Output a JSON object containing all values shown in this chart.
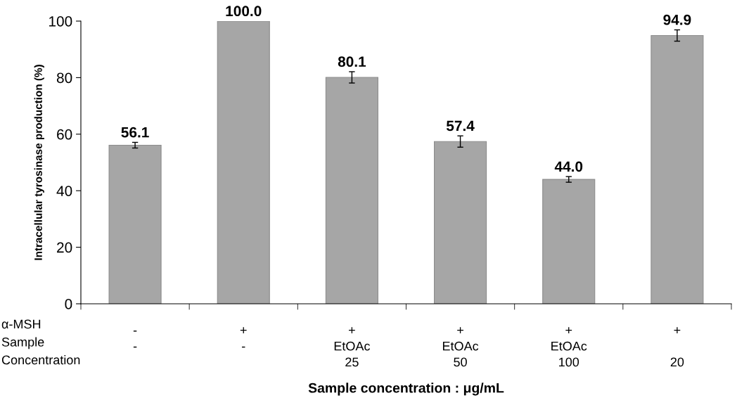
{
  "chart_data": {
    "type": "bar",
    "categories": [
      "-\n-\n",
      "+\n-\n",
      "+\nEtOAc\n25",
      "+\nEtOAc\n50",
      "+\nEtOAc\n100",
      "+\n\n20"
    ],
    "values": [
      56.1,
      100.0,
      80.1,
      57.4,
      44.0,
      94.9
    ],
    "errors": [
      1,
      null,
      2,
      2,
      1,
      2
    ],
    "color": "#a6a6a6",
    "value_labels": [
      "56.1",
      "100.0",
      "80.1",
      "57.4",
      "44.0",
      "94.9"
    ],
    "ylabel": "Intracellular tyrosinase production (%)",
    "xlabel": "Sample concentration : μg/mL",
    "annotations": [
      "α-MSH",
      "Sample",
      "Concentration"
    ],
    "ylim": [
      0,
      100
    ],
    "yticks": [
      0,
      20,
      40,
      60,
      80,
      100
    ],
    "grid": false,
    "legend": false
  }
}
